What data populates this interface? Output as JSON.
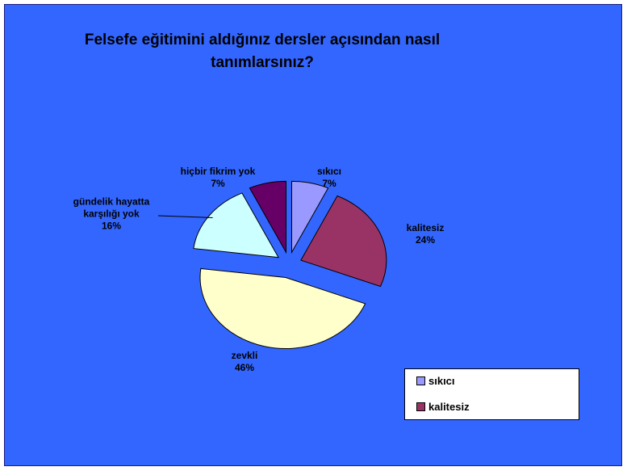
{
  "chart_data": {
    "type": "pie",
    "title": "Felsefe eğitimini aldığınız dersler açısından nasıl tanımlarsınız?",
    "categories": [
      "sıkıcı",
      "kalitesiz",
      "zevkli",
      "gündelik hayatta karşılığı yok",
      "hiçbir fikrim yok"
    ],
    "values": [
      7,
      24,
      46,
      16,
      7
    ],
    "value_labels": [
      "7%",
      "24%",
      "46%",
      "16%",
      "7%"
    ],
    "colors": [
      "#9999ff",
      "#993366",
      "#ffffcc",
      "#ccffff",
      "#660066"
    ],
    "legend_entries": [
      0,
      1
    ]
  }
}
